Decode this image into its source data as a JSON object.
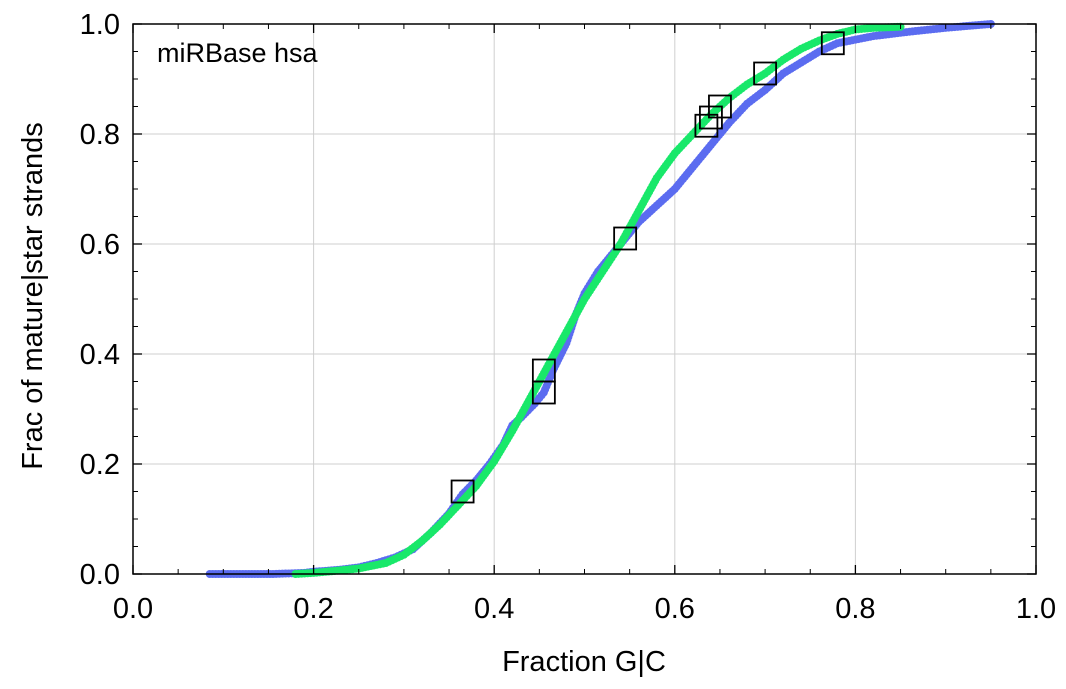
{
  "chart_data": {
    "type": "scatter",
    "title": "",
    "annotation": "miRBase hsa",
    "xlabel": "Fraction G|C",
    "ylabel": "Frac of mature|star strands",
    "xlim": [
      0.0,
      1.0
    ],
    "ylim": [
      0.0,
      1.0
    ],
    "x_ticks": [
      0.0,
      0.2,
      0.4,
      0.6,
      0.8,
      1.0
    ],
    "y_ticks": [
      0.0,
      0.2,
      0.4,
      0.6,
      0.8,
      1.0
    ],
    "x_tick_labels": [
      "0.0",
      "0.2",
      "0.4",
      "0.6",
      "0.8",
      "1.0"
    ],
    "y_tick_labels": [
      "0.0",
      "0.2",
      "0.4",
      "0.6",
      "0.8",
      "1.0"
    ],
    "grid": true,
    "colors": {
      "series_blue": "#5b6cf0",
      "series_green": "#19e86a",
      "marker_box": "#000000"
    },
    "series": [
      {
        "color": "#5b6cf0",
        "points": [
          [
            0.085,
            0.0
          ],
          [
            0.155,
            0.0
          ],
          [
            0.19,
            0.002
          ],
          [
            0.2,
            0.004
          ],
          [
            0.23,
            0.008
          ],
          [
            0.25,
            0.012
          ],
          [
            0.27,
            0.02
          ],
          [
            0.29,
            0.03
          ],
          [
            0.31,
            0.045
          ],
          [
            0.33,
            0.075
          ],
          [
            0.35,
            0.11
          ],
          [
            0.365,
            0.145
          ],
          [
            0.38,
            0.17
          ],
          [
            0.395,
            0.2
          ],
          [
            0.41,
            0.235
          ],
          [
            0.42,
            0.27
          ],
          [
            0.43,
            0.285
          ],
          [
            0.445,
            0.31
          ],
          [
            0.455,
            0.33
          ],
          [
            0.465,
            0.37
          ],
          [
            0.48,
            0.42
          ],
          [
            0.49,
            0.47
          ],
          [
            0.5,
            0.51
          ],
          [
            0.515,
            0.55
          ],
          [
            0.53,
            0.58
          ],
          [
            0.545,
            0.61
          ],
          [
            0.56,
            0.64
          ],
          [
            0.58,
            0.67
          ],
          [
            0.6,
            0.7
          ],
          [
            0.62,
            0.74
          ],
          [
            0.64,
            0.78
          ],
          [
            0.66,
            0.82
          ],
          [
            0.68,
            0.855
          ],
          [
            0.7,
            0.88
          ],
          [
            0.72,
            0.91
          ],
          [
            0.74,
            0.93
          ],
          [
            0.76,
            0.95
          ],
          [
            0.78,
            0.965
          ],
          [
            0.82,
            0.978
          ],
          [
            0.86,
            0.986
          ],
          [
            0.9,
            0.993
          ],
          [
            0.95,
            1.0
          ]
        ]
      },
      {
        "color": "#19e86a",
        "points": [
          [
            0.18,
            0.0
          ],
          [
            0.2,
            0.002
          ],
          [
            0.22,
            0.005
          ],
          [
            0.25,
            0.01
          ],
          [
            0.28,
            0.02
          ],
          [
            0.3,
            0.035
          ],
          [
            0.32,
            0.06
          ],
          [
            0.34,
            0.09
          ],
          [
            0.36,
            0.125
          ],
          [
            0.38,
            0.16
          ],
          [
            0.4,
            0.205
          ],
          [
            0.42,
            0.26
          ],
          [
            0.44,
            0.32
          ],
          [
            0.46,
            0.38
          ],
          [
            0.48,
            0.44
          ],
          [
            0.5,
            0.5
          ],
          [
            0.52,
            0.55
          ],
          [
            0.54,
            0.6
          ],
          [
            0.56,
            0.66
          ],
          [
            0.58,
            0.72
          ],
          [
            0.6,
            0.765
          ],
          [
            0.62,
            0.8
          ],
          [
            0.64,
            0.835
          ],
          [
            0.66,
            0.865
          ],
          [
            0.68,
            0.89
          ],
          [
            0.7,
            0.91
          ],
          [
            0.72,
            0.935
          ],
          [
            0.74,
            0.955
          ],
          [
            0.76,
            0.97
          ],
          [
            0.78,
            0.982
          ],
          [
            0.8,
            0.99
          ],
          [
            0.82,
            0.993
          ],
          [
            0.85,
            0.995
          ]
        ]
      }
    ],
    "highlight_boxes": [
      [
        0.365,
        0.15
      ],
      [
        0.455,
        0.33
      ],
      [
        0.455,
        0.37
      ],
      [
        0.545,
        0.61
      ],
      [
        0.635,
        0.815
      ],
      [
        0.64,
        0.83
      ],
      [
        0.65,
        0.85
      ],
      [
        0.7,
        0.91
      ],
      [
        0.775,
        0.965
      ]
    ]
  }
}
